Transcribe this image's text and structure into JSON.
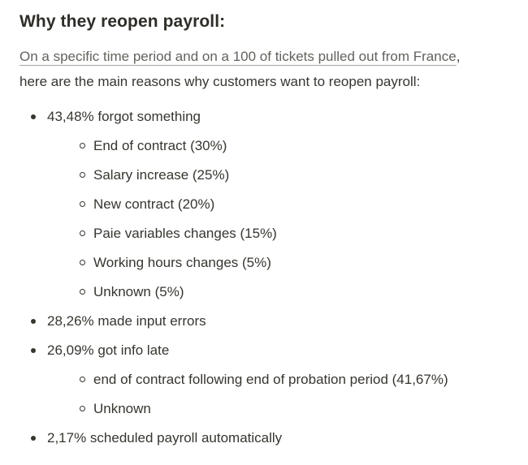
{
  "page": {
    "title": "Why they reopen payroll:",
    "intro": {
      "link_text": "On a specific time period and on a 100 of tickets pulled out from France",
      "after_link": ",",
      "line2": "here are the main reasons why customers want to reopen payroll:"
    },
    "reasons": {
      "items": [
        {
          "label": "43,48% forgot something",
          "children": [
            "End of contract (30%)",
            "Salary increase (25%)",
            "New contract (20%)",
            "Paie variables changes (15%)",
            "Working hours changes (5%)",
            "Unknown (5%)"
          ]
        },
        {
          "label": "28,26% made input errors",
          "children": []
        },
        {
          "label": "26,09% got info late",
          "children": [
            "end of contract following end of probation period (41,67%)",
            "Unknown"
          ]
        },
        {
          "label": "2,17% scheduled payroll automatically",
          "children": []
        }
      ]
    },
    "colors": {
      "text": "#37352f",
      "link": "#63625d",
      "background": "#ffffff"
    }
  }
}
